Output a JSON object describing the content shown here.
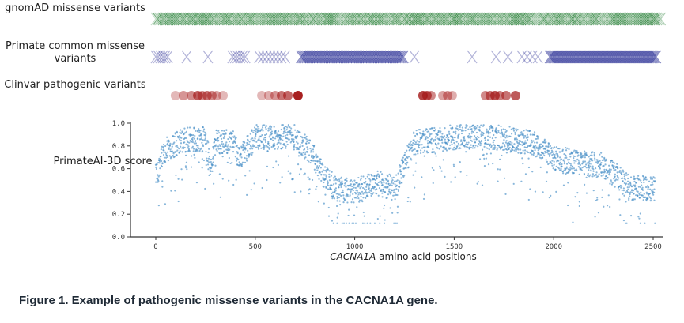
{
  "chart_data": {
    "type": "scatter",
    "tracks": [
      {
        "label": "gnomAD missense variants",
        "marker": "x",
        "color": "#1e7a2e",
        "range": [
          0,
          2540
        ],
        "density": "dense"
      },
      {
        "label": "Primate common missense variants",
        "marker": "x",
        "color": "#2a2f96",
        "clusters": [
          {
            "start": 0,
            "end": 60,
            "count": 6
          },
          {
            "start": 155,
            "end": 155,
            "count": 1
          },
          {
            "start": 262,
            "end": 262,
            "count": 1
          },
          {
            "start": 385,
            "end": 450,
            "count": 6
          },
          {
            "start": 520,
            "end": 650,
            "count": 8
          },
          {
            "start": 730,
            "end": 1245,
            "count": 70
          },
          {
            "start": 1300,
            "end": 1300,
            "count": 1
          },
          {
            "start": 1590,
            "end": 1590,
            "count": 1
          },
          {
            "start": 1710,
            "end": 1770,
            "count": 2
          },
          {
            "start": 1840,
            "end": 1920,
            "count": 4
          },
          {
            "start": 1980,
            "end": 2515,
            "count": 80
          }
        ]
      },
      {
        "label": "Clinvar pathogenic variants",
        "marker": "o",
        "color": "#a31515",
        "positions": [
          99,
          139,
          179,
          211,
          234,
          258,
          282,
          306,
          338,
          533,
          568,
          600,
          632,
          664,
          715,
          1343,
          1363,
          1383,
          1443,
          1467,
          1490,
          1657,
          1681,
          1705,
          1729,
          1761,
          1808
        ],
        "opacity": [
          0.3,
          0.45,
          0.5,
          0.7,
          0.5,
          0.6,
          0.5,
          0.4,
          0.3,
          0.3,
          0.35,
          0.45,
          0.6,
          0.65,
          0.95,
          0.8,
          0.7,
          0.5,
          0.4,
          0.45,
          0.35,
          0.5,
          0.6,
          0.75,
          0.55,
          0.6,
          0.7
        ]
      }
    ],
    "scatter": {
      "label": "PrimateAI-3D score",
      "color": "#4a90c8",
      "profile_positions": [
        0,
        40,
        150,
        250,
        275,
        300,
        390,
        420,
        500,
        700,
        790,
        830,
        900,
        1000,
        1100,
        1200,
        1240,
        1300,
        1500,
        1700,
        1900,
        2000,
        2100,
        2250,
        2320,
        2380,
        2500
      ],
      "profile_mean": [
        0.55,
        0.78,
        0.88,
        0.88,
        0.6,
        0.87,
        0.85,
        0.7,
        0.9,
        0.9,
        0.75,
        0.6,
        0.45,
        0.42,
        0.5,
        0.45,
        0.62,
        0.85,
        0.9,
        0.9,
        0.85,
        0.72,
        0.68,
        0.65,
        0.55,
        0.45,
        0.45
      ]
    },
    "xlabel_italic": "CACNA1A",
    "xlabel": "amino acid positions",
    "xlim": [
      -45,
      2560
    ],
    "ylim": [
      0,
      1
    ],
    "xticks": [
      "0",
      "500",
      "1000",
      "1500",
      "2000",
      "2500"
    ],
    "yticks": [
      "0.0",
      "0.2",
      "0.4",
      "0.6",
      "0.8",
      "1.0"
    ]
  },
  "caption": "Figure 1. Example of pathogenic missense variants in the CACNA1A gene."
}
